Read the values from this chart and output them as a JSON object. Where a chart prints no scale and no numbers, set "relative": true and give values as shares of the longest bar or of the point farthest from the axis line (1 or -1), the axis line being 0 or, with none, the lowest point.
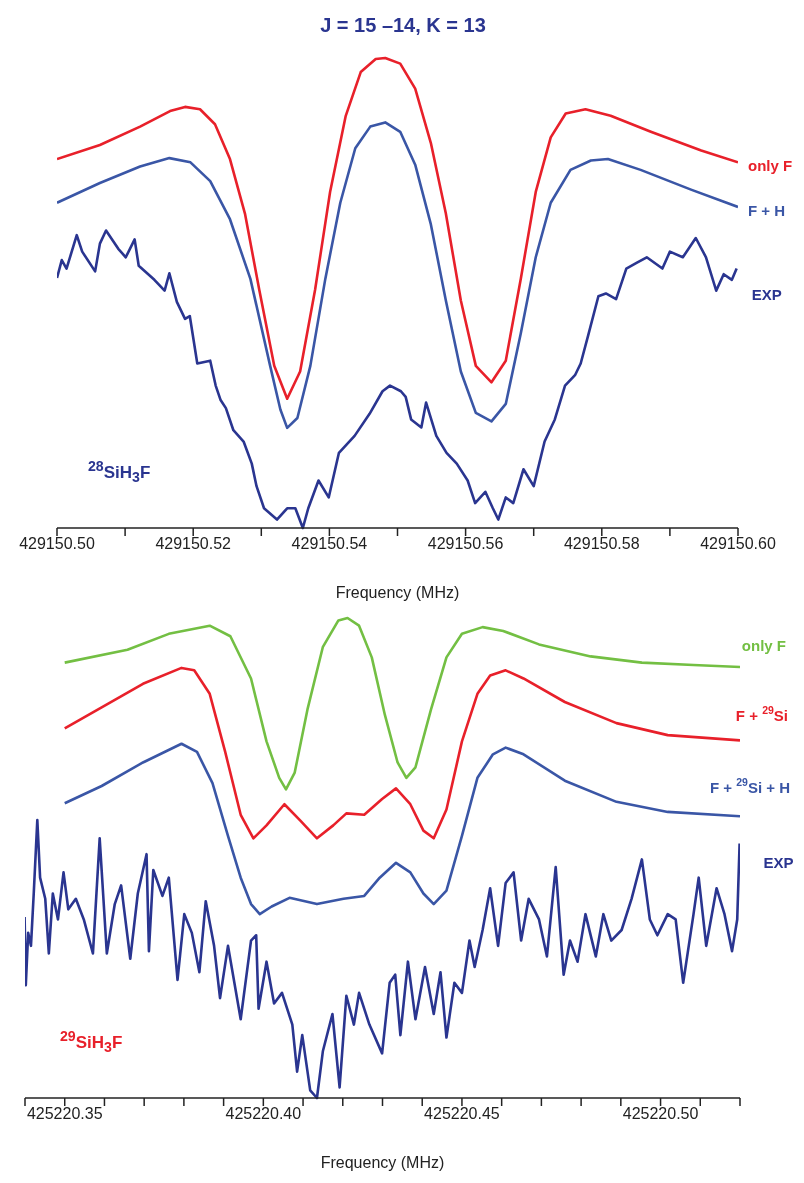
{
  "chart_data": [
    {
      "type": "line",
      "title": "J = 15 –14, K = 13",
      "xlabel": "Frequency (MHz)",
      "relative": true,
      "legend": false,
      "marker": "none",
      "line_style": "solid",
      "xlim": [
        429150.5,
        429150.6
      ],
      "xticks": [
        {
          "value": 429150.5,
          "label": "429150.50"
        },
        {
          "value": 429150.51,
          "label": null
        },
        {
          "value": 429150.52,
          "label": "429150.52"
        },
        {
          "value": 429150.53,
          "label": null
        },
        {
          "value": 429150.54,
          "label": "429150.54"
        },
        {
          "value": 429150.55,
          "label": null
        },
        {
          "value": 429150.56,
          "label": "429150.56"
        },
        {
          "value": 429150.57,
          "label": null
        },
        {
          "value": 429150.58,
          "label": "429150.58"
        },
        {
          "value": 429150.59,
          "label": null
        },
        {
          "value": 429150.6,
          "label": "429150.60"
        }
      ],
      "annotations": [
        "$^{28}$SiH$_{3}$F"
      ],
      "series": [
        {
          "name": "only F",
          "color": "#e8202a",
          "x": [
            429150.5,
            429150.5063,
            429150.5122,
            429150.5166,
            429150.5188,
            429150.521,
            429150.5232,
            429150.5254,
            429150.5276,
            429150.5297,
            429150.5319,
            429150.5338,
            429150.5357,
            429150.5379,
            429150.5401,
            429150.5424,
            429150.5446,
            429150.5468,
            429150.5482,
            429150.5504,
            429150.5526,
            429150.5549,
            429150.5571,
            429150.5593,
            429150.5615,
            429150.5638,
            429150.5659,
            429150.5681,
            429150.5703,
            429150.5725,
            429150.5747,
            429150.5776,
            429150.5813,
            429150.5872,
            429150.5946,
            429150.6
          ],
          "values": [
            0.785,
            0.815,
            0.854,
            0.887,
            0.896,
            0.891,
            0.859,
            0.785,
            0.669,
            0.507,
            0.345,
            0.275,
            0.333,
            0.507,
            0.715,
            0.877,
            0.97,
            0.998,
            1.0,
            0.988,
            0.935,
            0.819,
            0.669,
            0.484,
            0.345,
            0.31,
            0.356,
            0.53,
            0.715,
            0.831,
            0.882,
            0.891,
            0.877,
            0.843,
            0.803,
            0.778
          ]
        },
        {
          "name": "F + H",
          "color": "#3a56a6",
          "x": [
            429150.5,
            429150.5063,
            429150.5122,
            429150.5165,
            429150.5196,
            429150.5225,
            429150.5254,
            429150.5284,
            429150.5313,
            429150.5328,
            429150.5338,
            429150.5353,
            429150.5372,
            429150.5394,
            429150.5416,
            429150.5438,
            429150.546,
            429150.5482,
            429150.5504,
            429150.5526,
            429150.5549,
            429150.5571,
            429150.5593,
            429150.5615,
            429150.5638,
            429150.5659,
            429150.5681,
            429150.5703,
            429150.5725,
            429150.5754,
            429150.5784,
            429150.5809,
            429150.5857,
            429150.5931,
            429150.6
          ],
          "values": [
            0.692,
            0.734,
            0.769,
            0.787,
            0.778,
            0.738,
            0.657,
            0.53,
            0.345,
            0.252,
            0.213,
            0.234,
            0.345,
            0.53,
            0.692,
            0.808,
            0.854,
            0.863,
            0.843,
            0.773,
            0.646,
            0.484,
            0.333,
            0.245,
            0.227,
            0.264,
            0.414,
            0.576,
            0.692,
            0.762,
            0.782,
            0.785,
            0.762,
            0.72,
            0.683
          ]
        },
        {
          "name": "EXP",
          "color": "#2a3590",
          "x": [
            429150.5,
            429150.5007,
            429150.5014,
            429150.5029,
            429150.5037,
            429150.5056,
            429150.5063,
            429150.5072,
            429150.509,
            429150.5101,
            429150.5114,
            429150.512,
            429150.5143,
            429150.5158,
            429150.5165,
            429150.5176,
            429150.5188,
            429150.5195,
            429150.5206,
            429150.5225,
            429150.5233,
            429150.524,
            429150.5248,
            429150.5259,
            429150.5274,
            429150.5286,
            429150.5293,
            429150.5304,
            429150.5323,
            429150.5338,
            429150.535,
            429150.5361,
            429150.5369,
            429150.5384,
            429150.5399,
            429150.5414,
            429150.5437,
            429150.5459,
            429150.5478,
            429150.5489,
            429150.5505,
            429150.5512,
            429150.552,
            429150.5535,
            429150.5542,
            429150.5557,
            429150.5572,
            429150.5587,
            429150.5603,
            429150.5614,
            429150.5629,
            429150.564,
            429150.5648,
            429150.5659,
            429150.567,
            429150.5685,
            429150.57,
            429150.5716,
            429150.5731,
            429150.5746,
            429150.5761,
            429150.5769,
            429150.578,
            429150.5795,
            429150.5806,
            429150.5821,
            429150.5836,
            429150.5851,
            429150.5866,
            429150.5889,
            429150.59,
            429150.5919,
            429150.5938,
            429150.5953,
            429150.5968,
            429150.5979,
            429150.5991,
            429150.5998
          ],
          "values": [
            0.532,
            0.57,
            0.552,
            0.623,
            0.588,
            0.546,
            0.605,
            0.633,
            0.594,
            0.576,
            0.614,
            0.558,
            0.528,
            0.505,
            0.542,
            0.481,
            0.445,
            0.451,
            0.35,
            0.356,
            0.303,
            0.273,
            0.255,
            0.208,
            0.184,
            0.137,
            0.089,
            0.042,
            0.018,
            0.042,
            0.042,
            0.0,
            0.042,
            0.101,
            0.065,
            0.16,
            0.196,
            0.243,
            0.291,
            0.303,
            0.291,
            0.279,
            0.231,
            0.214,
            0.267,
            0.196,
            0.16,
            0.137,
            0.101,
            0.053,
            0.077,
            0.042,
            0.018,
            0.065,
            0.053,
            0.125,
            0.089,
            0.184,
            0.231,
            0.303,
            0.326,
            0.35,
            0.41,
            0.493,
            0.499,
            0.487,
            0.552,
            0.564,
            0.576,
            0.552,
            0.588,
            0.576,
            0.617,
            0.576,
            0.505,
            0.54,
            0.528,
            0.552
          ]
        }
      ]
    },
    {
      "type": "line",
      "xlabel": "Frequency (MHz)",
      "relative": true,
      "legend": false,
      "marker": "none",
      "line_style": "solid",
      "xlim": [
        425220.34,
        425220.52
      ],
      "xticks": [
        {
          "value": 425220.34,
          "label": null
        },
        {
          "value": 425220.35,
          "label": "425220.35"
        },
        {
          "value": 425220.36,
          "label": null
        },
        {
          "value": 425220.37,
          "label": null
        },
        {
          "value": 425220.38,
          "label": null
        },
        {
          "value": 425220.39,
          "label": null
        },
        {
          "value": 425220.4,
          "label": "425220.40"
        },
        {
          "value": 425220.41,
          "label": null
        },
        {
          "value": 425220.42,
          "label": null
        },
        {
          "value": 425220.43,
          "label": null
        },
        {
          "value": 425220.44,
          "label": null
        },
        {
          "value": 425220.45,
          "label": "425220.45"
        },
        {
          "value": 425220.46,
          "label": null
        },
        {
          "value": 425220.47,
          "label": null
        },
        {
          "value": 425220.48,
          "label": null
        },
        {
          "value": 425220.49,
          "label": null
        },
        {
          "value": 425220.5,
          "label": "425220.50"
        },
        {
          "value": 425220.51,
          "label": null
        },
        {
          "value": 425220.52,
          "label": null
        }
      ],
      "annotations": [
        "$^{29}$SiH$_{3}$F"
      ],
      "series": [
        {
          "name": "only F",
          "color": "#73bf43",
          "x": [
            425220.35,
            425220.3658,
            425220.3762,
            425220.3865,
            425220.3917,
            425220.3969,
            425220.4008,
            425220.404,
            425220.4057,
            425220.4079,
            425220.4111,
            425220.415,
            425220.4189,
            425220.4212,
            425220.4241,
            425220.4273,
            425220.4306,
            425220.4338,
            425220.436,
            425220.4383,
            425220.4422,
            425220.4461,
            425220.45,
            425220.4552,
            425220.4604,
            425220.4694,
            425220.4824,
            425220.4953,
            425220.5083,
            425220.52
          ],
          "values": [
            0.907,
            0.934,
            0.967,
            0.984,
            0.962,
            0.874,
            0.743,
            0.667,
            0.643,
            0.678,
            0.809,
            0.94,
            0.995,
            1.0,
            0.984,
            0.918,
            0.798,
            0.699,
            0.667,
            0.689,
            0.809,
            0.918,
            0.967,
            0.981,
            0.973,
            0.945,
            0.92,
            0.907,
            0.902,
            0.898
          ]
        },
        {
          "name": "F + $^{29}$Si",
          "color": "#e8202a",
          "x": [
            425220.35,
            425220.3593,
            425220.3697,
            425220.3794,
            425220.3826,
            425220.3865,
            425220.3904,
            425220.3943,
            425220.3975,
            425220.4008,
            425220.4053,
            425220.4092,
            425220.4135,
            425220.4176,
            425220.4209,
            425220.4254,
            425220.4299,
            425220.4334,
            425220.437,
            425220.4403,
            425220.4429,
            425220.4461,
            425220.45,
            425220.4539,
            425220.4571,
            425220.461,
            425220.4655,
            425220.4759,
            425220.4889,
            425220.5018,
            425220.52
          ],
          "values": [
            0.77,
            0.814,
            0.863,
            0.896,
            0.891,
            0.842,
            0.721,
            0.59,
            0.541,
            0.568,
            0.612,
            0.579,
            0.541,
            0.568,
            0.593,
            0.59,
            0.623,
            0.645,
            0.612,
            0.557,
            0.541,
            0.601,
            0.743,
            0.842,
            0.88,
            0.891,
            0.874,
            0.825,
            0.781,
            0.756,
            0.745
          ]
        },
        {
          "name": "F + $^{29}$Si + H",
          "color": "#3a56a6",
          "x": [
            425220.35,
            425220.3593,
            425220.3697,
            425220.3794,
            425220.3833,
            425220.3872,
            425220.3911,
            425220.3943,
            425220.3969,
            425220.3991,
            425220.4021,
            425220.4066,
            425220.4135,
            425220.4202,
            425220.4254,
            425220.4293,
            425220.4334,
            425220.437,
            425220.4403,
            425220.4429,
            425220.4461,
            425220.45,
            425220.4539,
            425220.4578,
            425220.461,
            425220.4655,
            425220.4759,
            425220.4889,
            425220.5018,
            425220.52
          ],
          "values": [
            0.614,
            0.65,
            0.699,
            0.738,
            0.721,
            0.656,
            0.546,
            0.459,
            0.404,
            0.383,
            0.399,
            0.417,
            0.404,
            0.415,
            0.421,
            0.459,
            0.49,
            0.47,
            0.426,
            0.404,
            0.432,
            0.546,
            0.667,
            0.716,
            0.73,
            0.716,
            0.661,
            0.617,
            0.596,
            0.587
          ]
        },
        {
          "name": "EXP",
          "color": "#2a3590",
          "x": [
            425220.3399,
            425220.3402,
            425220.3408,
            425220.3415,
            425220.3422,
            425220.3431,
            425220.3438,
            425220.3451,
            425220.346,
            425220.347,
            425220.3483,
            425220.3497,
            425220.3509,
            425220.3528,
            425220.3548,
            425220.3571,
            425220.3588,
            425220.3606,
            425220.3626,
            425220.3642,
            425220.3665,
            425220.3684,
            425220.3706,
            425220.3712,
            425220.3723,
            425220.3746,
            425220.3762,
            425220.3784,
            425220.3801,
            425220.382,
            425220.3839,
            425220.3855,
            425220.3876,
            425220.3891,
            425220.3911,
            425220.3943,
            425220.3969,
            425220.3982,
            425220.3988,
            425220.4008,
            425220.4027,
            425220.4047,
            425220.4073,
            425220.4085,
            425220.4098,
            425220.4118,
            425220.4135,
            425220.415,
            425220.4174,
            425220.4192,
            425220.4209,
            425220.4228,
            425220.4241,
            425220.4267,
            425220.4299,
            425220.4318,
            425220.4332,
            425220.4345,
            425220.4364,
            425220.4383,
            425220.4407,
            425220.4429,
            425220.4446,
            425220.4461,
            425220.4481,
            425220.45,
            425220.4519,
            425220.4532,
            425220.4552,
            425220.4571,
            425220.4591,
            425220.461,
            425220.463,
            425220.4649,
            425220.4668,
            425220.4694,
            425220.4714,
            425220.4736,
            425220.4756,
            425220.4772,
            425220.4791,
            425220.4811,
            425220.4837,
            425220.4856,
            425220.4876,
            425220.4902,
            425220.4927,
            425220.4953,
            425220.4973,
            425220.4992,
            425220.5018,
            425220.5038,
            425220.5057,
            425220.5083,
            425220.5096,
            425220.5115,
            425220.5141,
            425220.5161,
            425220.518,
            425220.5193,
            425220.5199
          ],
          "values": [
            0.377,
            0.235,
            0.344,
            0.317,
            0.426,
            0.579,
            0.459,
            0.415,
            0.301,
            0.426,
            0.372,
            0.47,
            0.393,
            0.415,
            0.372,
            0.301,
            0.541,
            0.301,
            0.404,
            0.443,
            0.29,
            0.426,
            0.508,
            0.306,
            0.475,
            0.421,
            0.459,
            0.246,
            0.383,
            0.344,
            0.262,
            0.41,
            0.317,
            0.208,
            0.317,
            0.164,
            0.328,
            0.339,
            0.186,
            0.284,
            0.197,
            0.219,
            0.153,
            0.055,
            0.131,
            0.016,
            0.0,
            0.098,
            0.175,
            0.022,
            0.213,
            0.153,
            0.219,
            0.153,
            0.093,
            0.24,
            0.257,
            0.131,
            0.284,
            0.164,
            0.273,
            0.175,
            0.262,
            0.126,
            0.24,
            0.219,
            0.328,
            0.273,
            0.35,
            0.437,
            0.317,
            0.448,
            0.47,
            0.328,
            0.415,
            0.372,
            0.295,
            0.481,
            0.257,
            0.328,
            0.284,
            0.383,
            0.295,
            0.383,
            0.328,
            0.35,
            0.415,
            0.497,
            0.372,
            0.339,
            0.383,
            0.372,
            0.24,
            0.383,
            0.459,
            0.317,
            0.437,
            0.383,
            0.306,
            0.372,
            0.53
          ]
        }
      ]
    }
  ]
}
